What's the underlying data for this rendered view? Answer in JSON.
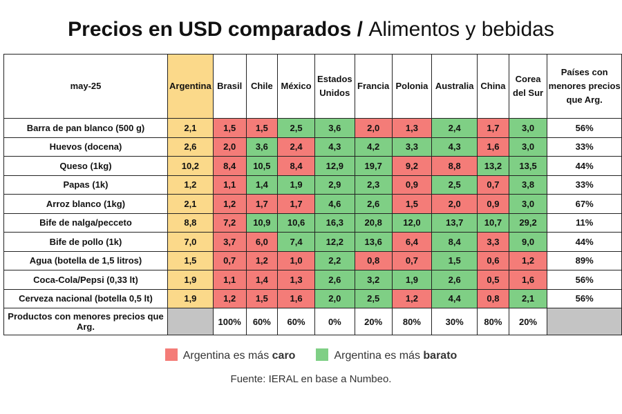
{
  "chart_data": {
    "type": "table",
    "title": "Precios en USD comparados",
    "subtitle": "Alimentos y bebidas",
    "corner": "may-25",
    "columns": [
      "Argentina",
      "Brasil",
      "Chile",
      "México",
      "Estados Unidos",
      "Francia",
      "Polonia",
      "Australia",
      "China",
      "Corea del Sur"
    ],
    "last_column": "Países con menores precios que Arg.",
    "rows": [
      {
        "label": "Barra de pan blanco (500 g)",
        "values": [
          "2,1",
          "1,5",
          "1,5",
          "2,5",
          "3,6",
          "2,0",
          "1,3",
          "2,4",
          "1,7",
          "3,0"
        ],
        "share": "56%"
      },
      {
        "label": "Huevos (docena)",
        "values": [
          "2,6",
          "2,0",
          "3,6",
          "2,4",
          "4,3",
          "4,2",
          "3,3",
          "4,3",
          "1,6",
          "3,0"
        ],
        "share": "33%"
      },
      {
        "label": "Queso (1kg)",
        "values": [
          "10,2",
          "8,4",
          "10,5",
          "8,4",
          "12,9",
          "19,7",
          "9,2",
          "8,8",
          "13,2",
          "13,5"
        ],
        "share": "44%"
      },
      {
        "label": "Papas (1k)",
        "values": [
          "1,2",
          "1,1",
          "1,4",
          "1,9",
          "2,9",
          "2,3",
          "0,9",
          "2,5",
          "0,7",
          "3,8"
        ],
        "share": "33%"
      },
      {
        "label": "Arroz blanco (1kg)",
        "values": [
          "2,1",
          "1,2",
          "1,7",
          "1,7",
          "4,6",
          "2,6",
          "1,5",
          "2,0",
          "0,9",
          "3,0"
        ],
        "share": "67%"
      },
      {
        "label": "Bife de nalga/pecceto",
        "values": [
          "8,8",
          "7,2",
          "10,9",
          "10,6",
          "16,3",
          "20,8",
          "12,0",
          "13,7",
          "10,7",
          "29,2"
        ],
        "share": "11%"
      },
      {
        "label": "Bife de pollo (1k)",
        "values": [
          "7,0",
          "3,7",
          "6,0",
          "7,4",
          "12,2",
          "13,6",
          "6,4",
          "8,4",
          "3,3",
          "9,0"
        ],
        "share": "44%"
      },
      {
        "label": "Agua (botella de 1,5 litros)",
        "values": [
          "1,5",
          "0,7",
          "1,2",
          "1,0",
          "2,2",
          "0,8",
          "0,7",
          "1,5",
          "0,6",
          "1,2"
        ],
        "share": "89%"
      },
      {
        "label": "Coca-Cola/Pepsi (0,33 lt)",
        "values": [
          "1,9",
          "1,1",
          "1,4",
          "1,3",
          "2,6",
          "3,2",
          "1,9",
          "2,6",
          "0,5",
          "1,6"
        ],
        "share": "56%"
      },
      {
        "label": "Cerveza nacional (botella 0,5 lt)",
        "values": [
          "1,9",
          "1,2",
          "1,5",
          "1,6",
          "2,0",
          "2,5",
          "1,2",
          "4,4",
          "0,8",
          "2,1"
        ],
        "share": "56%"
      }
    ],
    "summary": {
      "label": "Productos con menores precios que Arg.",
      "values": [
        "100%",
        "60%",
        "60%",
        "0%",
        "20%",
        "80%",
        "30%",
        "80%",
        "20%"
      ]
    },
    "legend": [
      {
        "text": "Argentina es más ",
        "bold": "caro",
        "color": "#f47c78"
      },
      {
        "text": "Argentina es más ",
        "bold": "barato",
        "color": "#7fcf85"
      }
    ],
    "source": "Fuente: IERAL en base a Numbeo."
  },
  "colors": {
    "argentina": "#fbd98a",
    "cheaper": "#f47c78",
    "pricier": "#7fcf85",
    "empty": "#c4c4c4"
  }
}
